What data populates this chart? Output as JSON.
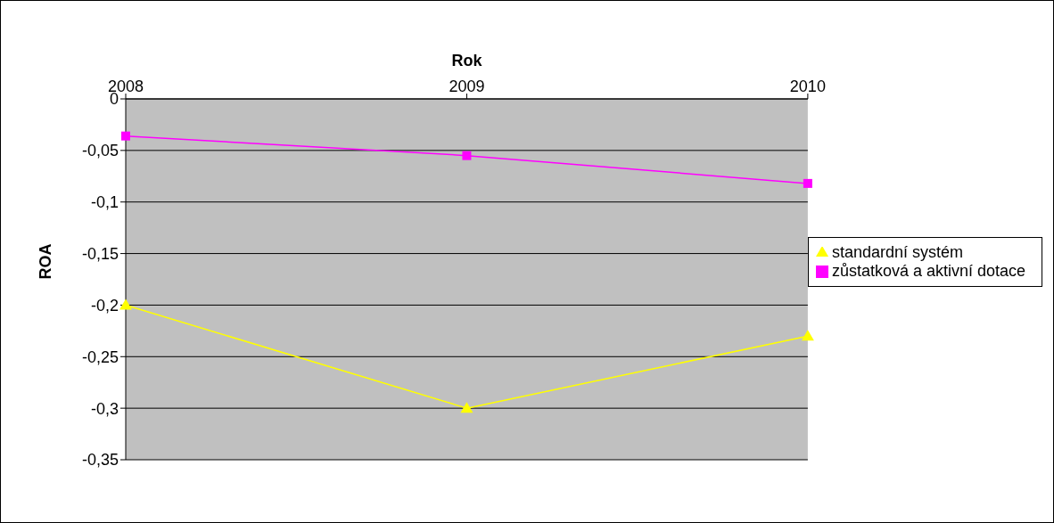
{
  "chart_data": {
    "type": "line",
    "xlabel": "Rok",
    "ylabel": "ROA",
    "categories": [
      "2008",
      "2009",
      "2010"
    ],
    "series": [
      {
        "name": "zůstatková a aktivní dotace",
        "color": "#ff00ff",
        "marker": "square",
        "values": [
          -0.036,
          -0.055,
          -0.082
        ]
      },
      {
        "name": "standardní systém",
        "color": "#ffff00",
        "marker": "triangle",
        "values": [
          -0.2,
          -0.3,
          -0.23
        ]
      }
    ],
    "ylim": [
      -0.35,
      0
    ],
    "yticks": [
      {
        "value": 0,
        "label": "0"
      },
      {
        "value": -0.05,
        "label": "-0,05"
      },
      {
        "value": -0.1,
        "label": "-0,1"
      },
      {
        "value": -0.15,
        "label": "-0,15"
      },
      {
        "value": -0.2,
        "label": "-0,2"
      },
      {
        "value": -0.25,
        "label": "-0,25"
      },
      {
        "value": -0.3,
        "label": "-0,3"
      },
      {
        "value": -0.35,
        "label": "-0,35"
      }
    ],
    "grid": "y",
    "legend": "right"
  }
}
